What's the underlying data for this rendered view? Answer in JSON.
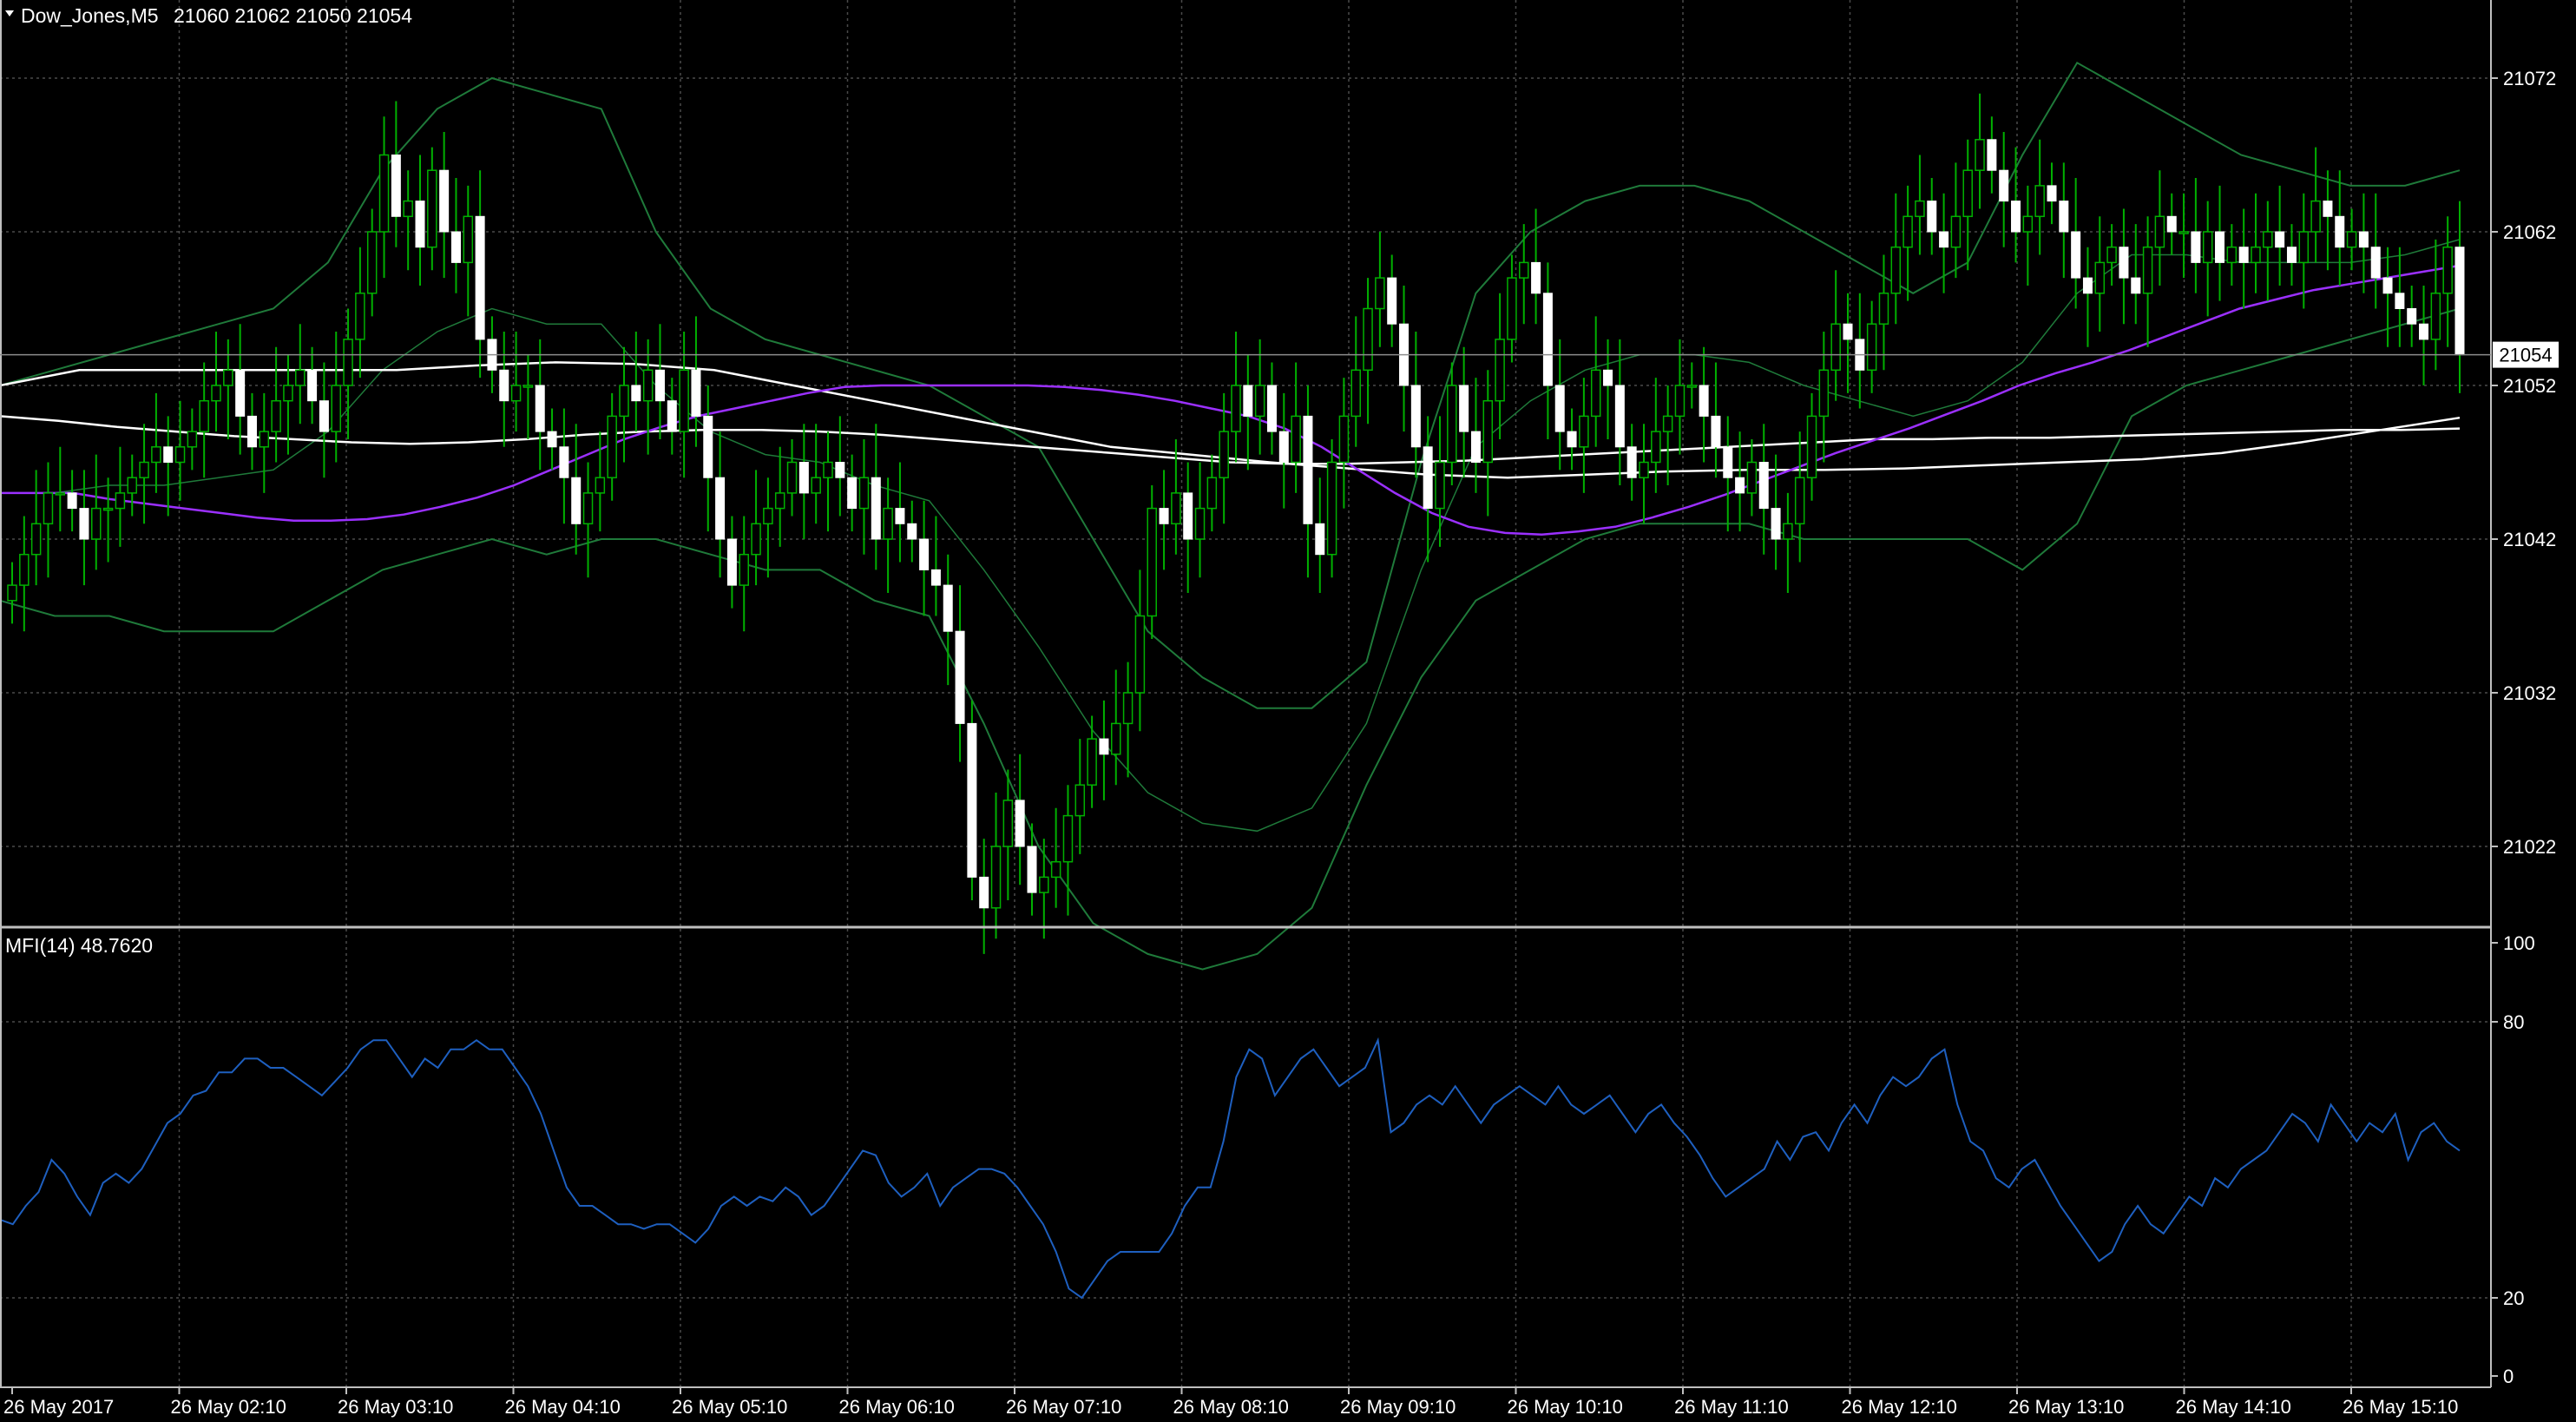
{
  "header": {
    "symbol": "Dow_Jones,M5",
    "ohlc": "21060 21062 21050 21054",
    "indicator": "MFI(14) 48.7620"
  },
  "current_price_label": "21054",
  "colors": {
    "background": "#000000",
    "grid": "#4a4a4a",
    "candle_body": "#ffffff",
    "candle_wick": "#00b000",
    "bollinger": "#1f7a3a",
    "ma_fast": "#9b30ff",
    "ma_slow": "#ffffff",
    "mfi": "#1e5fbf"
  },
  "chart_data": [
    {
      "type": "candlestick",
      "title": "Dow_Jones,M5",
      "y_ticks": [
        "21072",
        "21062",
        "21052",
        "21042",
        "21032",
        "21022"
      ],
      "ylim": [
        21017,
        21075
      ],
      "x_ticks": [
        "26 May 2017",
        "26 May 02:10",
        "26 May 03:10",
        "26 May 04:10",
        "26 May 05:10",
        "26 May 06:10",
        "26 May 07:10",
        "26 May 08:10",
        "26 May 09:10",
        "26 May 10:10",
        "26 May 11:10",
        "26 May 12:10",
        "26 May 13:10",
        "26 May 14:10",
        "26 May 15:10"
      ],
      "grid": true,
      "close": [
        21039,
        21041,
        21043,
        21045,
        21045,
        21044,
        21042,
        21044,
        21044,
        21045,
        21046,
        21047,
        21048,
        21047,
        21048,
        21049,
        21051,
        21052,
        21053,
        21050,
        21048,
        21049,
        21051,
        21052,
        21053,
        21051,
        21049,
        21052,
        21055,
        21058,
        21062,
        21067,
        21063,
        21064,
        21061,
        21066,
        21062,
        21060,
        21063,
        21055,
        21053,
        21051,
        21052,
        21052,
        21049,
        21048,
        21046,
        21043,
        21045,
        21046,
        21050,
        21052,
        21051,
        21053,
        21051,
        21049,
        21053,
        21050,
        21046,
        21042,
        21039,
        21041,
        21043,
        21044,
        21045,
        21047,
        21045,
        21046,
        21047,
        21046,
        21044,
        21046,
        21042,
        21044,
        21043,
        21042,
        21040,
        21039,
        21036,
        21030,
        21020,
        21018,
        21022,
        21025,
        21022,
        21019,
        21020,
        21021,
        21024,
        21026,
        21029,
        21028,
        21030,
        21032,
        21037,
        21044,
        21043,
        21045,
        21042,
        21044,
        21046,
        21049,
        21052,
        21050,
        21052,
        21049,
        21047,
        21050,
        21043,
        21041,
        21047,
        21050,
        21053,
        21057,
        21059,
        21056,
        21052,
        21048,
        21044,
        21047,
        21052,
        21049,
        21047,
        21051,
        21055,
        21059,
        21060,
        21058,
        21052,
        21049,
        21048,
        21050,
        21053,
        21052,
        21048,
        21046,
        21047,
        21049,
        21050,
        21052,
        21052,
        21050,
        21048,
        21046,
        21045,
        21047,
        21044,
        21042,
        21043,
        21046,
        21050,
        21053,
        21056,
        21055,
        21053,
        21056,
        21058,
        21061,
        21063,
        21064,
        21062,
        21061,
        21063,
        21066,
        21068,
        21066,
        21064,
        21062,
        21063,
        21065,
        21064,
        21062,
        21059,
        21058,
        21060,
        21061,
        21059,
        21058,
        21061,
        21063,
        21062,
        21062,
        21060,
        21062,
        21060,
        21061,
        21060,
        21061,
        21062,
        21061,
        21060,
        21062,
        21064,
        21063,
        21061,
        21062,
        21061,
        21059,
        21058,
        21057,
        21056,
        21055,
        21058,
        21061,
        21054
      ],
      "ma_fast": [
        21045,
        21045,
        21045,
        21044.6,
        21044.3,
        21044,
        21043.7,
        21043.4,
        21043.2,
        21043.2,
        21043.3,
        21043.6,
        21044.1,
        21044.7,
        21045.5,
        21046.5,
        21047.5,
        21048.5,
        21049.3,
        21050,
        21050.5,
        21051,
        21051.5,
        21051.9,
        21052,
        21052,
        21052,
        21052,
        21052,
        21051.9,
        21051.7,
        21051.4,
        21051,
        21050.5,
        21050,
        21049.2,
        21048,
        21046.5,
        21045,
        21043.7,
        21042.8,
        21042.4,
        21042.3,
        21042.5,
        21042.8,
        21043.4,
        21044.1,
        21044.9,
        21045.8,
        21046.7,
        21047.6,
        21048.4,
        21049.2,
        21050.1,
        21051,
        21052,
        21052.8,
        21053.5,
        21054.3,
        21055.2,
        21056.1,
        21057,
        21057.6,
        21058.2,
        21058.6,
        21059,
        21059.4,
        21059.8
      ],
      "ma_slow": [
        21052,
        21053,
        21053,
        21053,
        21053,
        21053,
        21053.3,
        21053.5,
        21053.4,
        21053,
        21052,
        21051,
        21050,
        21049,
        21048,
        21047.5,
        21047,
        21046.6,
        21046.2,
        21046,
        21046.2,
        21046.4,
        21046.5,
        21046.5,
        21046.6,
        21046.8,
        21047,
        21047.2,
        21047.6,
        21048.3,
        21049.1,
        21049.9
      ],
      "ma_slow_2": [
        21050,
        21049.7,
        21049.3,
        21049,
        21048.7,
        21048.5,
        21048.3,
        21048.2,
        21048.3,
        21048.5,
        21048.8,
        21049,
        21049.1,
        21049.1,
        21049,
        21048.8,
        21048.5,
        21048.2,
        21047.9,
        21047.6,
        21047.3,
        21047,
        21046.9,
        21046.9,
        21047,
        21047.1,
        21047.3,
        21047.5,
        21047.7,
        21047.9,
        21048.1,
        21048.3,
        21048.5,
        21048.5,
        21048.6,
        21048.6,
        21048.7,
        21048.8,
        21048.9,
        21049,
        21049.1,
        21049.1,
        21049.2
      ],
      "bb_upper": [
        21052,
        21053,
        21054,
        21055,
        21056,
        21057,
        21060,
        21066,
        21070,
        21072,
        21071,
        21070,
        21062,
        21057,
        21055,
        21054,
        21053,
        21052,
        21050,
        21048,
        21042,
        21036,
        21033,
        21031,
        21031,
        21034,
        21047,
        21058,
        21062,
        21064,
        21065,
        21065,
        21064,
        21062,
        21060,
        21058,
        21060,
        21067,
        21073,
        21071,
        21069,
        21067,
        21066,
        21065,
        21065,
        21066
      ],
      "bb_lower": [
        21038,
        21037,
        21037,
        21036,
        21036,
        21036,
        21038,
        21040,
        21041,
        21042,
        21041,
        21042,
        21042,
        21041,
        21040,
        21040,
        21038,
        21037,
        21030,
        21022,
        21017,
        21015,
        21014,
        21015,
        21018,
        21026,
        21033,
        21038,
        21040,
        21042,
        21043,
        21043,
        21043,
        21042,
        21042,
        21042,
        21042,
        21040,
        21043,
        21050,
        21052,
        21053,
        21054,
        21055,
        21056,
        21057
      ]
    },
    {
      "type": "line",
      "title": "MFI(14) 48.7620",
      "y_ticks": [
        "100",
        "80",
        "20",
        "0"
      ],
      "ylim": [
        0,
        100
      ],
      "grid": true,
      "values": [
        37,
        36,
        40,
        43,
        50,
        47,
        42,
        38,
        45,
        47,
        45,
        48,
        53,
        58,
        60,
        64,
        65,
        69,
        69,
        72,
        72,
        70,
        70,
        68,
        66,
        64,
        67,
        70,
        74,
        76,
        76,
        72,
        68,
        72,
        70,
        74,
        74,
        76,
        74,
        74,
        70,
        66,
        60,
        52,
        44,
        40,
        40,
        38,
        36,
        36,
        35,
        36,
        36,
        34,
        32,
        35,
        40,
        42,
        40,
        42,
        41,
        44,
        42,
        38,
        40,
        44,
        48,
        52,
        51,
        45,
        42,
        44,
        47,
        40,
        44,
        46,
        48,
        48,
        47,
        44,
        40,
        36,
        30,
        22,
        20,
        24,
        28,
        30,
        30,
        30,
        30,
        34,
        40,
        44,
        44,
        54,
        68,
        74,
        72,
        64,
        68,
        72,
        74,
        70,
        66,
        68,
        70,
        76,
        56,
        58,
        62,
        64,
        62,
        66,
        62,
        58,
        62,
        64,
        66,
        64,
        62,
        66,
        62,
        60,
        62,
        64,
        60,
        56,
        60,
        62,
        58,
        55,
        51,
        46,
        42,
        44,
        46,
        48,
        54,
        50,
        55,
        56,
        52,
        58,
        62,
        58,
        64,
        68,
        66,
        68,
        72,
        74,
        62,
        54,
        52,
        46,
        44,
        48,
        50,
        45,
        40,
        36,
        32,
        28,
        30,
        36,
        40,
        36,
        34,
        38,
        42,
        40,
        46,
        44,
        48,
        50,
        52,
        56,
        60,
        58,
        54,
        62,
        58,
        54,
        58,
        56,
        60,
        50,
        56,
        58,
        54,
        52
      ],
      "current": 48.762
    }
  ]
}
